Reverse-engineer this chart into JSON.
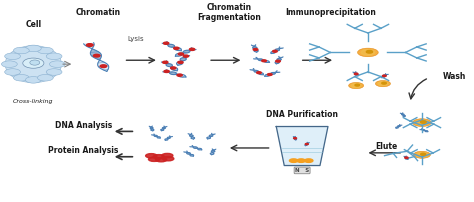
{
  "bg_color": "#ffffff",
  "figsize": [
    4.74,
    2.02
  ],
  "dpi": 100,
  "labels": {
    "cell": "Cell",
    "chromatin": "Chromatin",
    "cross_linking": "Cross-linking",
    "lysis": "Lysis",
    "chrom_frag": "Chromatin\nFragmentation",
    "immunoprecip": "Immunoprecipitation",
    "wash": "Wash",
    "elute": "Elute",
    "dna_purif": "DNA Purification",
    "dna_analysis": "DNA Analysis",
    "protein_analysis": "Protein Analysis"
  },
  "dna_color": "#4a7fb5",
  "dna_stripe_color": "#d0e4f5",
  "red_dot_color": "#cc2222",
  "arrow_color": "#333333",
  "cell_color": "#c5ddf0",
  "nucleus_color": "#e0f0fc",
  "bead_color": "#f5a020",
  "antibody_color": "#5aa0c8",
  "text_color": "#1a1a1a",
  "label_fontsize": 5.5,
  "small_fontsize": 5.0
}
